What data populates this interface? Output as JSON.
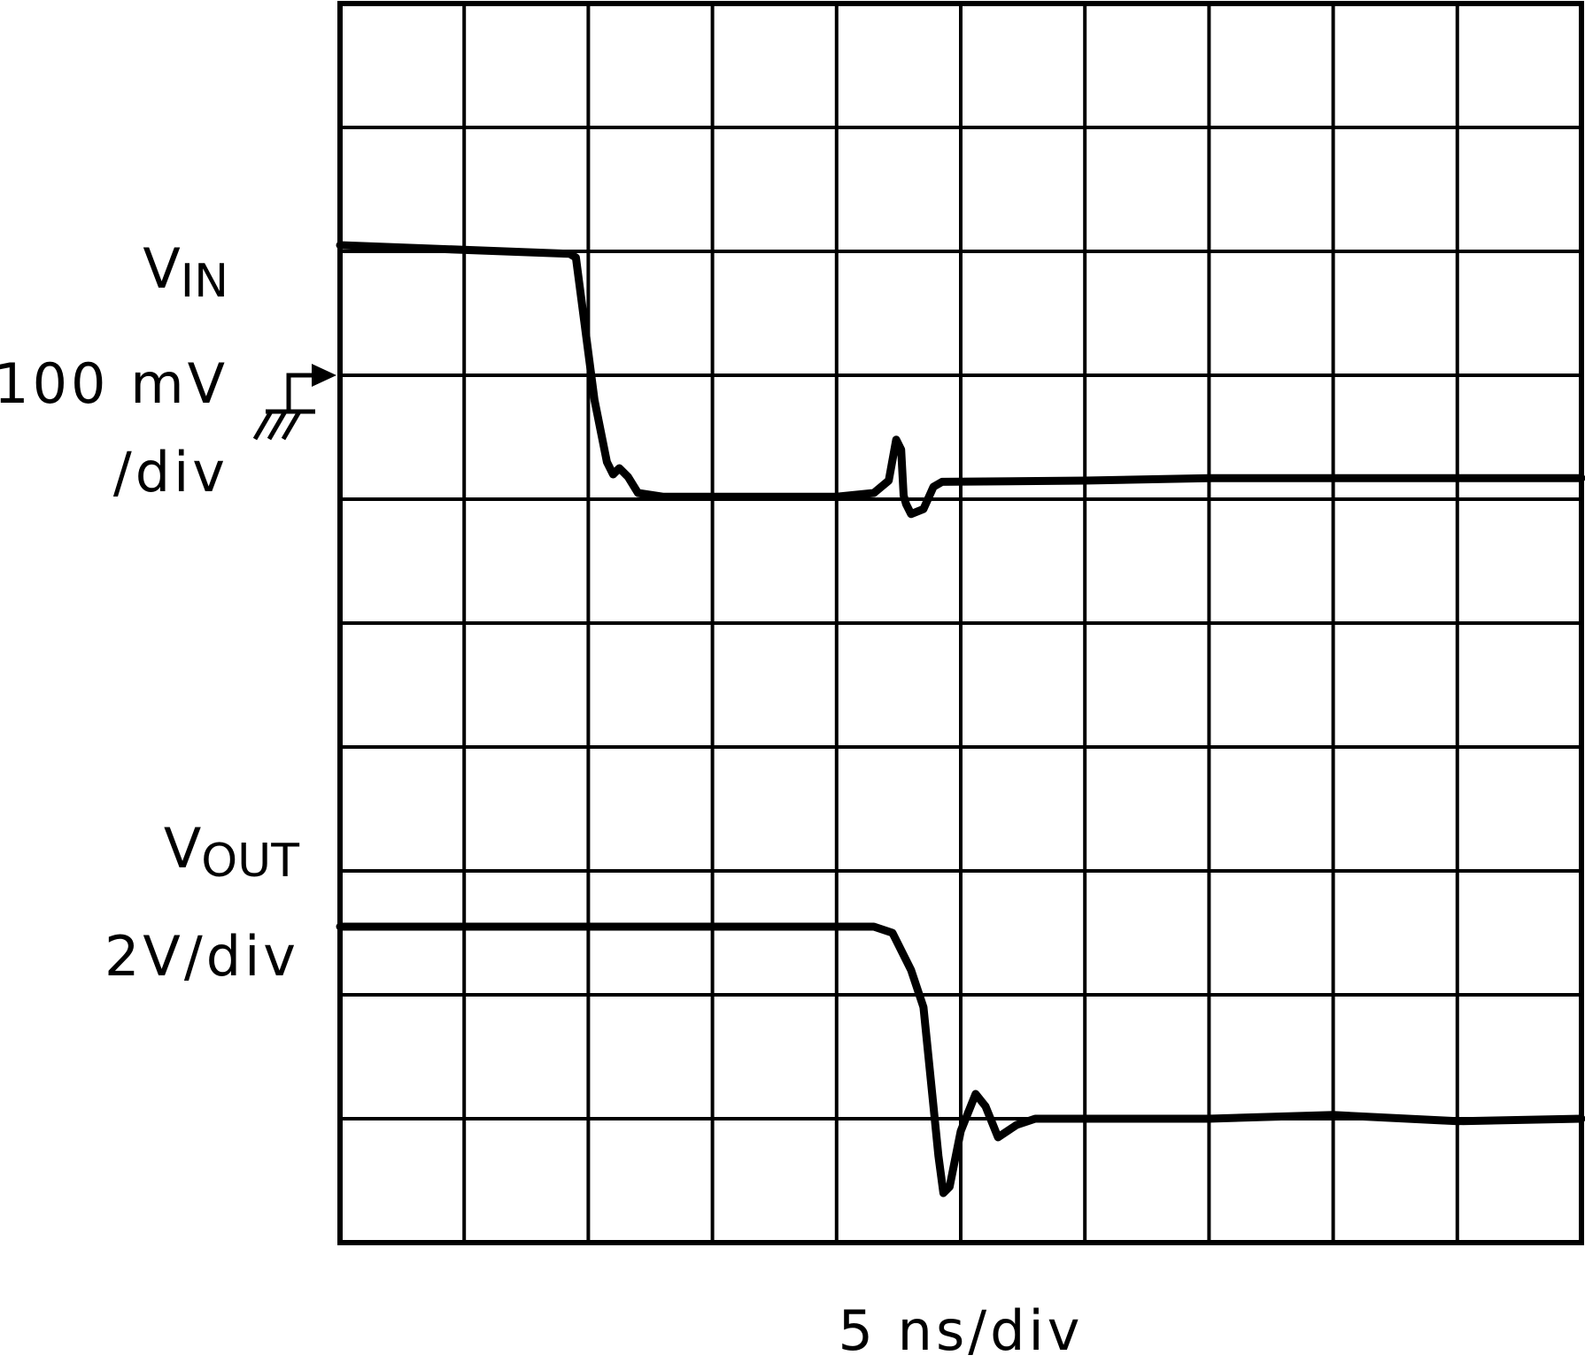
{
  "chart_data": {
    "type": "line",
    "title": "",
    "xlabel": "5 ns/div",
    "grid": true,
    "divisions": {
      "x": 10,
      "y": 10
    },
    "xlim": [
      0,
      10
    ],
    "ylim": [
      0,
      10
    ],
    "ground_marker_level": 7,
    "series": [
      {
        "name_main": "V",
        "name_sub": "IN",
        "scale": "100 mV",
        "scale_unit": "/div",
        "color": "#000000",
        "points": [
          [
            0.0,
            8.05
          ],
          [
            1.85,
            7.98
          ],
          [
            1.9,
            7.95
          ],
          [
            2.05,
            6.8
          ],
          [
            2.15,
            6.3
          ],
          [
            2.2,
            6.2
          ],
          [
            2.25,
            6.25
          ],
          [
            2.32,
            6.18
          ],
          [
            2.4,
            6.05
          ],
          [
            2.6,
            6.02
          ],
          [
            3.4,
            6.02
          ],
          [
            4.0,
            6.02
          ],
          [
            4.3,
            6.05
          ],
          [
            4.42,
            6.15
          ],
          [
            4.48,
            6.48
          ],
          [
            4.52,
            6.4
          ],
          [
            4.54,
            6.03
          ],
          [
            4.56,
            5.96
          ],
          [
            4.6,
            5.88
          ],
          [
            4.7,
            5.92
          ],
          [
            4.78,
            6.1
          ],
          [
            4.85,
            6.14
          ],
          [
            6.0,
            6.15
          ],
          [
            7.0,
            6.17
          ],
          [
            10.0,
            6.17
          ]
        ]
      },
      {
        "name_main": "V",
        "name_sub": "OUT",
        "scale": "2V/div",
        "color": "#000000",
        "points": [
          [
            0.0,
            2.55
          ],
          [
            4.3,
            2.55
          ],
          [
            4.45,
            2.5
          ],
          [
            4.6,
            2.2
          ],
          [
            4.7,
            1.9
          ],
          [
            4.78,
            1.1
          ],
          [
            4.82,
            0.7
          ],
          [
            4.86,
            0.4
          ],
          [
            4.91,
            0.45
          ],
          [
            5.0,
            0.9
          ],
          [
            5.12,
            1.2
          ],
          [
            5.2,
            1.1
          ],
          [
            5.3,
            0.85
          ],
          [
            5.45,
            0.95
          ],
          [
            5.6,
            1.0
          ],
          [
            6.0,
            1.0
          ],
          [
            7.0,
            1.0
          ],
          [
            8.0,
            1.03
          ],
          [
            9.0,
            0.98
          ],
          [
            10.0,
            1.0
          ]
        ]
      }
    ]
  }
}
